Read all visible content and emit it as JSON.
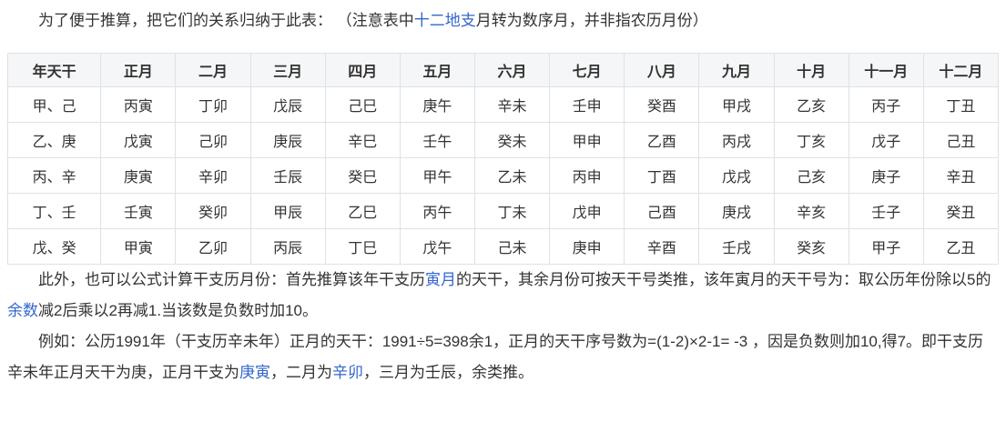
{
  "colors": {
    "link": "#3366cc",
    "border": "#dfe1e5",
    "header_bg": "#f5f6f7",
    "text": "#333333"
  },
  "intro": {
    "segments": [
      {
        "text": "为了便于推算，把它们的关系归纳于此表： （注意表中",
        "link": false
      },
      {
        "text": "十二地支",
        "link": true,
        "name": "link-twelve-earthly-branches"
      },
      {
        "text": "月转为数序月，并非指农历月份）",
        "link": false
      }
    ]
  },
  "table": {
    "headers": [
      "年天干",
      "正月",
      "二月",
      "三月",
      "四月",
      "五月",
      "六月",
      "七月",
      "八月",
      "九月",
      "十月",
      "十一月",
      "十二月"
    ],
    "rows": [
      [
        "甲、己",
        "丙寅",
        "丁卯",
        "戊辰",
        "己巳",
        "庚午",
        "辛未",
        "壬申",
        "癸酉",
        "甲戌",
        "乙亥",
        "丙子",
        "丁丑"
      ],
      [
        "乙、庚",
        "戊寅",
        "己卯",
        "庚辰",
        "辛巳",
        "壬午",
        "癸未",
        "甲申",
        "乙酉",
        "丙戌",
        "丁亥",
        "戊子",
        "己丑"
      ],
      [
        "丙、辛",
        "庚寅",
        "辛卯",
        "壬辰",
        "癸巳",
        "甲午",
        "乙未",
        "丙申",
        "丁酉",
        "戊戌",
        "己亥",
        "庚子",
        "辛丑"
      ],
      [
        "丁、壬",
        "壬寅",
        "癸卯",
        "甲辰",
        "乙巳",
        "丙午",
        "丁未",
        "戊申",
        "己酉",
        "庚戌",
        "辛亥",
        "壬子",
        "癸丑"
      ],
      [
        "戊、癸",
        "甲寅",
        "乙卯",
        "丙辰",
        "丁巳",
        "戊午",
        "己未",
        "庚申",
        "辛酉",
        "壬戌",
        "癸亥",
        "甲子",
        "乙丑"
      ]
    ]
  },
  "formula": {
    "segments": [
      {
        "text": "此外，也可以公式计算干支历月份：首先推算该年干支历",
        "link": false
      },
      {
        "text": "寅月",
        "link": true,
        "name": "link-yin-month"
      },
      {
        "text": "的天干，其余月份可按天干号类推，该年寅月的天干号为：取公历年份除以5的",
        "link": false
      },
      {
        "text": "余数",
        "link": true,
        "name": "link-remainder"
      },
      {
        "text": "减2后乘以2再减1.当该数是负数时加10。",
        "link": false
      }
    ]
  },
  "example": {
    "segments": [
      {
        "text": "例如：公历1991年（干支历辛未年）正月的天干：1991÷5=398余1，正月的天干序号数为=(1-2)×2-1= -3 ，因是负数则加10,得7。即干支历辛未年正月天干为庚，正月干支为",
        "link": false
      },
      {
        "text": "庚寅",
        "link": true,
        "name": "link-gengyin"
      },
      {
        "text": "，二月为",
        "link": false
      },
      {
        "text": "辛卯",
        "link": true,
        "name": "link-xinmao"
      },
      {
        "text": "，三月为壬辰，余类推。",
        "link": false
      }
    ]
  }
}
